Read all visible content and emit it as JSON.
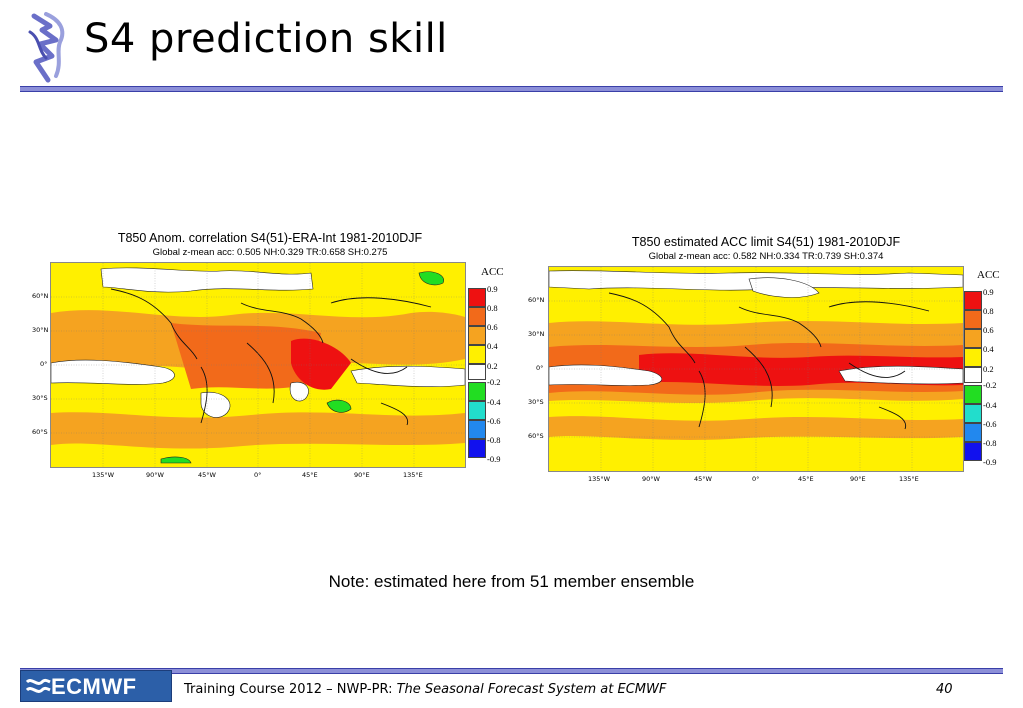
{
  "slide": {
    "title": "S4 prediction skill",
    "note": "Note: estimated here from 51 member ensemble"
  },
  "maps": [
    {
      "title": "T850 Anom. correlation S4(51)-ERA-Int  1981-2010DJF",
      "subtitle": "Global z-mean acc: 0.505 NH:0.329 TR:0.658 SH:0.275"
    },
    {
      "title": "T850 estimated ACC limit S4(51)  1981-2010DJF",
      "subtitle": "Global z-mean acc: 0.582 NH:0.334 TR:0.739 SH:0.374"
    }
  ],
  "axes": {
    "lat_ticks": [
      "60°N",
      "30°N",
      "0°",
      "30°S",
      "60°S"
    ],
    "lon_ticks": [
      "135°W",
      "90°W",
      "45°W",
      "0°",
      "45°E",
      "90°E",
      "135°E"
    ]
  },
  "legend": {
    "title": "ACC",
    "positive": [
      {
        "label": "0.9",
        "color": "#ee1111"
      },
      {
        "label": "0.8",
        "color": "#f26a1a"
      },
      {
        "label": "0.6",
        "color": "#f5a320"
      },
      {
        "label": "0.4",
        "color": "#fff000"
      },
      {
        "label": "0.2",
        "color": "#ffffff"
      }
    ],
    "negative": [
      {
        "label": "-0.2",
        "color": "#22dd22"
      },
      {
        "label": "-0.4",
        "color": "#22ddcc"
      },
      {
        "label": "-0.6",
        "color": "#2288ee"
      },
      {
        "label": "-0.8",
        "color": "#1111ee"
      },
      {
        "label": "-0.9",
        "color": "#ffffff"
      }
    ]
  },
  "footer": {
    "logo_text": "ECMWF",
    "course_prefix": "Training Course 2012 – NWP-PR: ",
    "course_title": "The Seasonal Forecast System at ECMWF",
    "page_number": "40"
  }
}
